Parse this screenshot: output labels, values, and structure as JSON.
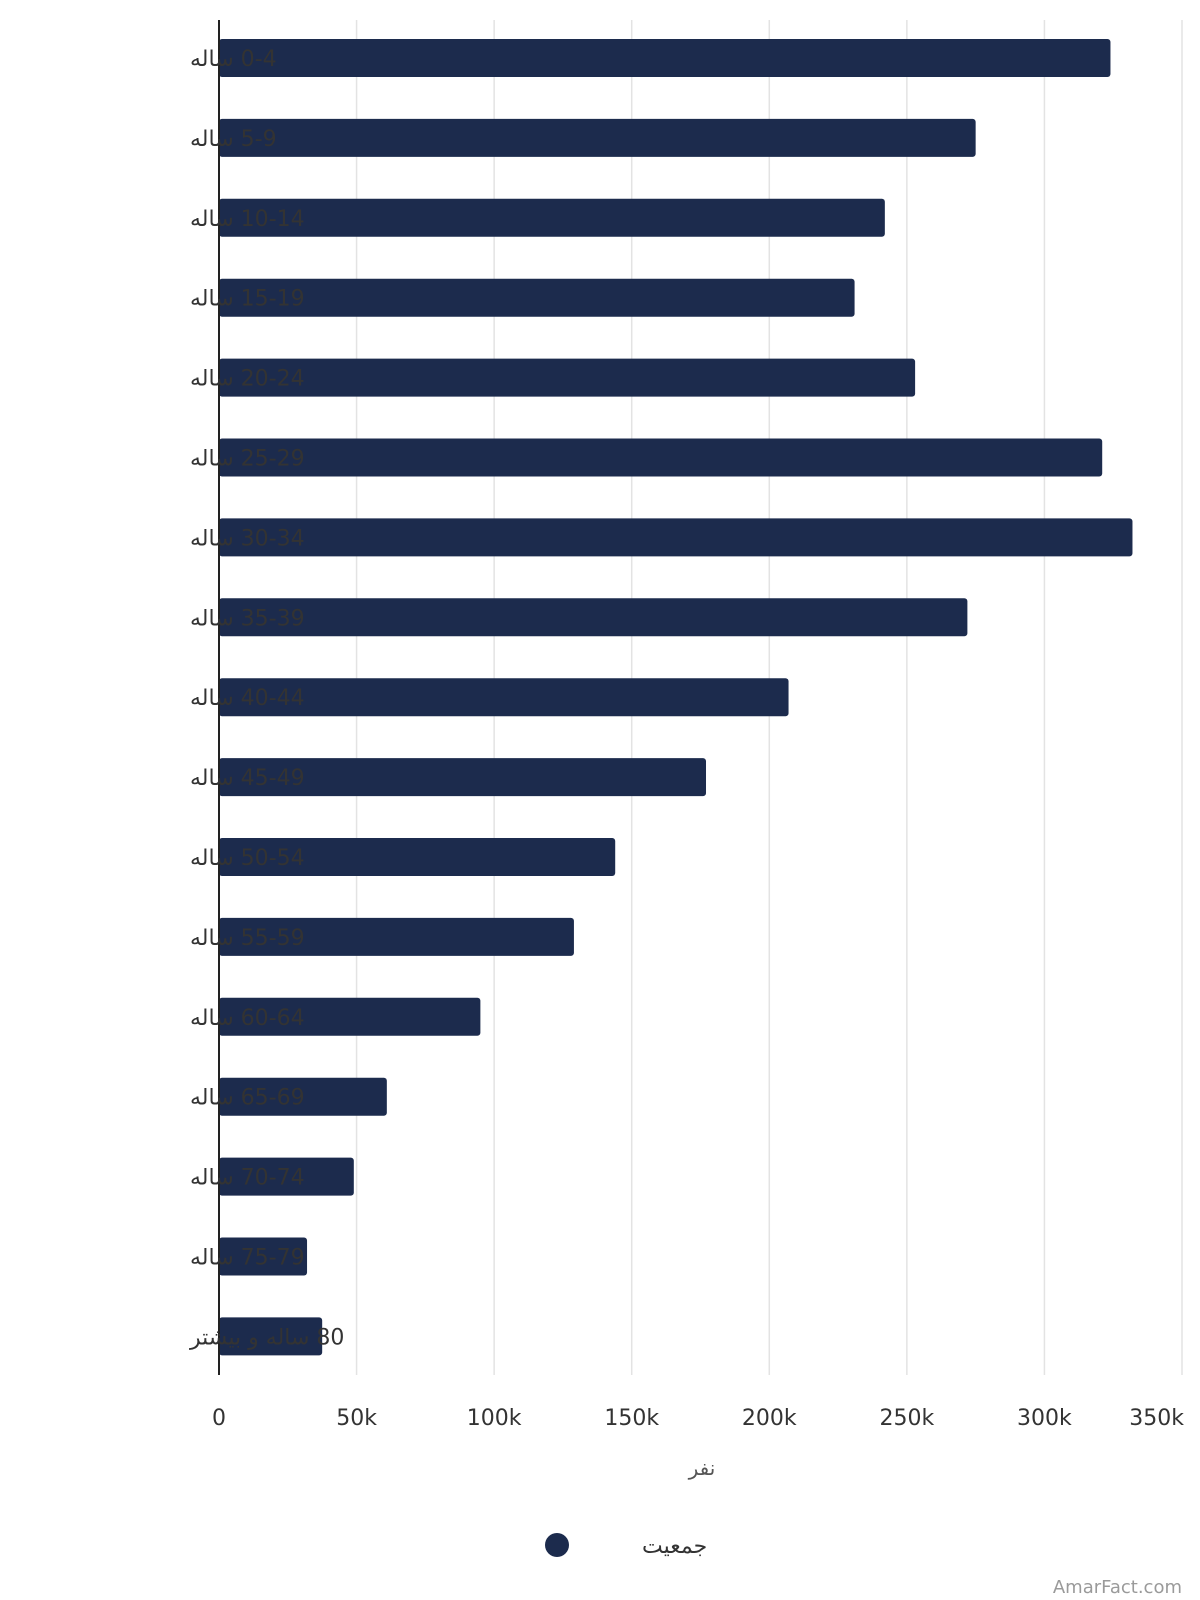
{
  "chart_data": {
    "type": "bar",
    "orientation": "horizontal",
    "categories": [
      "0-4 ساله",
      "5-9 ساله",
      "10-14 ساله",
      "15-19 ساله",
      "20-24 ساله",
      "25-29 ساله",
      "30-34 ساله",
      "35-39 ساله",
      "40-44 ساله",
      "45-49 ساله",
      "50-54 ساله",
      "55-59 ساله",
      "60-64 ساله",
      "65-69 ساله",
      "70-74 ساله",
      "75-79 ساله",
      "80 ساله و بیشتر"
    ],
    "series": [
      {
        "name": "جمعیت",
        "color": "#1c2b4d",
        "values": [
          324000,
          275000,
          242000,
          231000,
          253000,
          321000,
          332000,
          272000,
          207000,
          177000,
          144000,
          129000,
          95000,
          61000,
          49000,
          32000,
          37500
        ]
      }
    ],
    "xlim": [
      0,
      350000
    ],
    "xticks": [
      0,
      50000,
      100000,
      150000,
      200000,
      250000,
      300000,
      350000
    ],
    "xtick_labels": [
      "0",
      "50k",
      "100k",
      "150k",
      "200k",
      "250k",
      "300k",
      "350k"
    ],
    "xlabel": "نفر",
    "ylabel": "",
    "title": "",
    "grid": "vertical",
    "legend_position": "bottom-center",
    "watermark": "AmarFact.com"
  }
}
